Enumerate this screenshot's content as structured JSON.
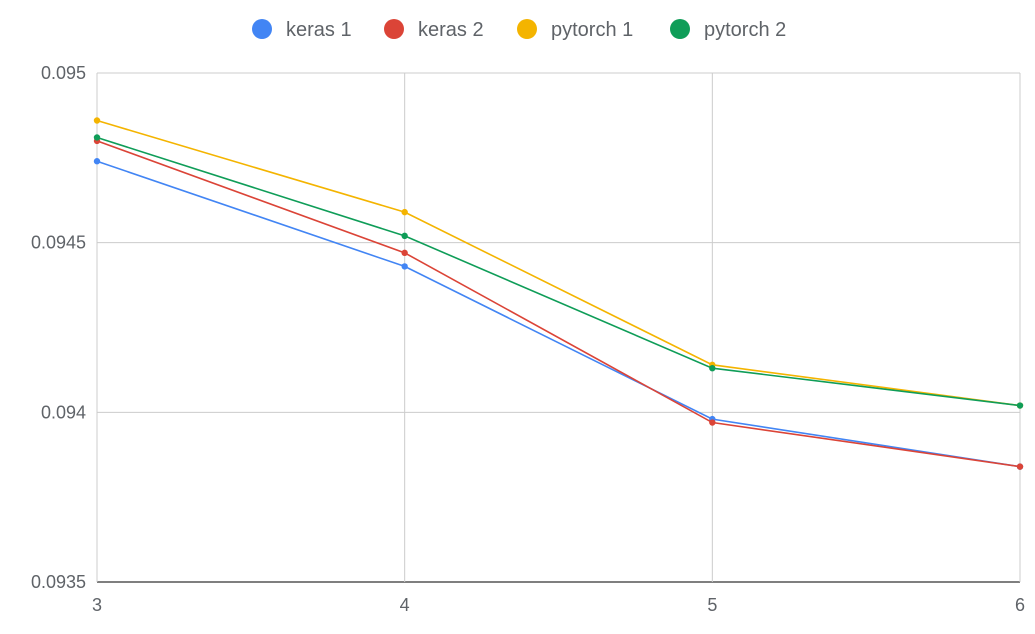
{
  "chart_data": {
    "type": "line",
    "title": "",
    "xlabel": "",
    "ylabel": "",
    "x": [
      3,
      4,
      5,
      6
    ],
    "x_tick_labels": [
      "3",
      "4",
      "5",
      "6"
    ],
    "y_tick_labels": [
      "0.0935",
      "0.094",
      "0.0945",
      "0.095"
    ],
    "ylim": [
      0.0935,
      0.095
    ],
    "xlim": [
      3,
      6
    ],
    "grid": true,
    "legend_position": "top",
    "series": [
      {
        "name": "keras 1",
        "color": "#4285F4",
        "values": [
          0.09474,
          0.09443,
          0.09398,
          0.09384
        ]
      },
      {
        "name": "keras 2",
        "color": "#DB4437",
        "values": [
          0.0948,
          0.09447,
          0.09397,
          0.09384
        ]
      },
      {
        "name": "pytorch 1",
        "color": "#F4B400",
        "values": [
          0.09486,
          0.09459,
          0.09414,
          0.09402
        ]
      },
      {
        "name": "pytorch 2",
        "color": "#0F9D58",
        "values": [
          0.09481,
          0.09452,
          0.09413,
          0.09402
        ]
      }
    ]
  }
}
